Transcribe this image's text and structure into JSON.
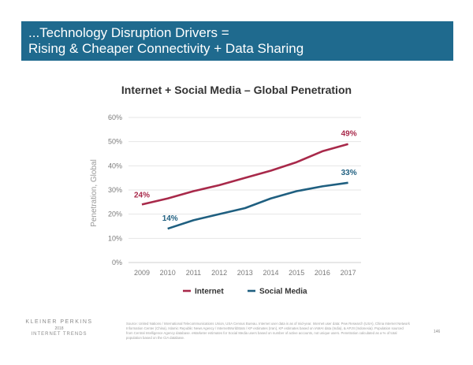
{
  "banner": {
    "line1": "...Technology Disruption Drivers =",
    "line2": "Rising & Cheaper Connectivity + Data Sharing"
  },
  "chart_data": {
    "type": "line",
    "title": "Internet + Social Media – Global Penetration",
    "xlabel": "",
    "ylabel": "Penetration, Global",
    "categories": [
      "2009",
      "2010",
      "2011",
      "2012",
      "2013",
      "2014",
      "2015",
      "2016",
      "2017"
    ],
    "ylim": [
      0,
      60
    ],
    "yticks": [
      0,
      10,
      20,
      30,
      40,
      50,
      60
    ],
    "ytick_labels": [
      "0%",
      "10%",
      "20%",
      "30%",
      "40%",
      "50%",
      "60%"
    ],
    "grid": true,
    "legend_position": "bottom-center",
    "series": [
      {
        "name": "Internet",
        "color": "#a8294a",
        "values": [
          24,
          26.5,
          29.5,
          32,
          35,
          38,
          41.5,
          46,
          49
        ],
        "start_label": "24%",
        "end_label": "49%"
      },
      {
        "name": "Social Media",
        "color": "#1f5f80",
        "values": [
          null,
          14,
          17.5,
          20,
          22.5,
          26.5,
          29.5,
          31.5,
          33
        ],
        "start_label": "14%",
        "end_label": "33%"
      }
    ]
  },
  "footer": {
    "logo_line1": "KLEINER PERKINS",
    "logo_line2": "2018",
    "logo_line3": "INTERNET TRENDS",
    "source": "Source: United Nations / International Telecommunications Union, USA Census Bureau. Internet user data is as of mid-year. Internet user data: Pew Research (USA), China Internet Network Information Center (China), Islamic Republic News Agency / InternetWorldStats / KP estimates (Iran), KP estimates based on IAMAI data (India), & APJII (Indonesia). Population sourced from Central Intelligence Agency database. eMarketer estimates for Social Media users based on number of active accounts, not unique users. Penetration calculated as a % of total population based on the CIA database.",
    "page": "146"
  }
}
